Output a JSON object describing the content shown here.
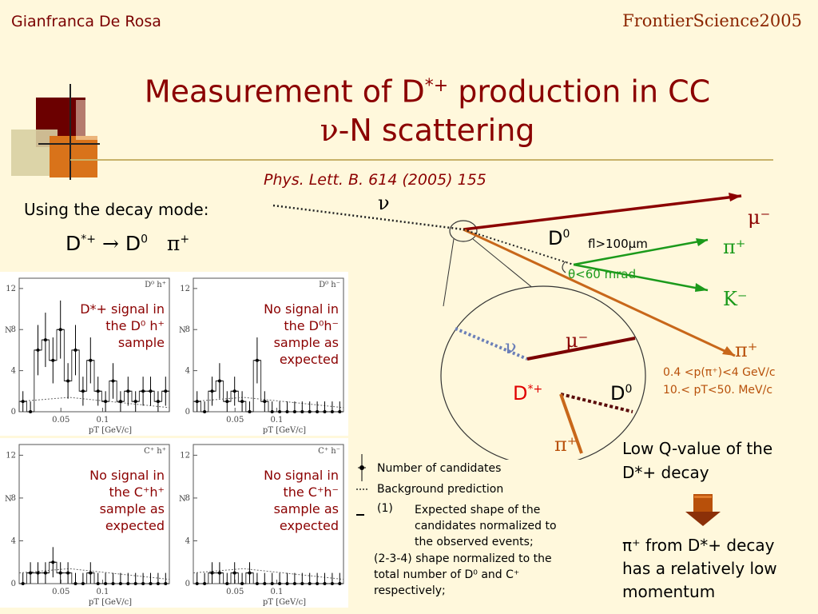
{
  "header": {
    "author": "Gianfranca De Rosa",
    "conference": "FrontierScience2005"
  },
  "title": {
    "line1_a": "Measurement of D",
    "line1_sup": "*+",
    "line1_b": " production in CC",
    "line2_nu": "ν",
    "line2": "-N scattering"
  },
  "reference": "Phys. Lett. B. 614 (2005) 155",
  "decay": {
    "label": "Using the decay mode:",
    "lhs": "D",
    "lhs_sup": "*+",
    "arrow": "→",
    "rhs": "D",
    "rhs_sup": "0",
    "pion": "π",
    "pion_sup": "+"
  },
  "diagram": {
    "nu": "ν",
    "mu": "μ⁻",
    "pi_plus": "π⁺",
    "k_minus": "K⁻",
    "d0_label": "D",
    "d0_sup": "0",
    "fl_cut": "fl>100μm",
    "theta_cut": "θ<60 mrad",
    "zoom_nu": "ν",
    "zoom_mu": "μ⁻",
    "zoom_dstar": "D",
    "zoom_dstar_sup": "*+",
    "zoom_d0": "D",
    "zoom_d0_sup": "0",
    "zoom_pi": "π⁺",
    "soft_pi": "π⁺",
    "cut_p": "0.4 <p(π⁺)<4 GeV/c",
    "cut_pt": "10.< pT<50. MeV/c"
  },
  "panels": [
    {
      "corner": "D⁰ h⁺",
      "signal_text": [
        "D*+ signal in",
        "the D⁰ h⁺",
        "sample"
      ]
    },
    {
      "corner": "D⁰ h⁻",
      "signal_text": [
        "No signal in",
        "the D⁰h⁻",
        "sample as",
        "expected"
      ]
    },
    {
      "corner": "C⁺ h⁺",
      "signal_text": [
        "No signal in",
        "the C⁺h⁺",
        "sample as",
        "expected"
      ]
    },
    {
      "corner": "C⁺ h⁻",
      "signal_text": [
        "No signal in",
        "the C⁺h⁻",
        "sample as",
        "expected"
      ]
    }
  ],
  "axis": {
    "y_label": "N",
    "y_ticks": [
      "0",
      "4",
      "8",
      "12"
    ],
    "x_ticks": [
      "0.05",
      "0.1"
    ],
    "x_label": "pT  [GeV/c]"
  },
  "legend": {
    "candidates": "Number of candidates",
    "background": "Background prediction",
    "note_1_num": "(1)",
    "note_1": [
      "Expected shape of the",
      "candidates normalized to",
      "the observed events;"
    ],
    "note_2": [
      "(2-3-4) shape normalized to the",
      "total number of D⁰ and C⁺",
      "respectively;"
    ]
  },
  "notes": {
    "low_q": [
      "Low Q-value of the",
      "D*+ decay"
    ],
    "conclusion": [
      "π⁺ from D*+ decay",
      "has a relatively low",
      "momentum"
    ]
  },
  "colors": {
    "title": "#8b0000",
    "background": "#fff8dc",
    "brown": "#b8500a",
    "green": "#1b9a1b"
  },
  "histograms": {
    "candidates": [
      [
        1,
        0,
        6,
        7,
        5,
        8,
        3,
        6,
        2,
        5,
        2,
        1,
        3,
        1,
        2,
        1,
        2,
        2,
        1,
        2
      ],
      [
        1,
        0,
        2,
        3,
        1,
        2,
        1,
        0,
        5,
        1,
        0,
        0,
        0,
        0,
        0,
        0,
        0,
        0,
        0,
        0
      ],
      [
        0,
        1,
        1,
        1,
        2,
        1,
        1,
        0,
        0,
        1,
        0,
        0,
        0,
        0,
        0,
        0,
        0,
        0,
        0,
        0
      ],
      [
        0,
        0,
        1,
        1,
        0,
        1,
        0,
        1,
        0,
        0,
        0,
        0,
        0,
        0,
        0,
        0,
        0,
        0,
        0,
        0
      ]
    ]
  }
}
